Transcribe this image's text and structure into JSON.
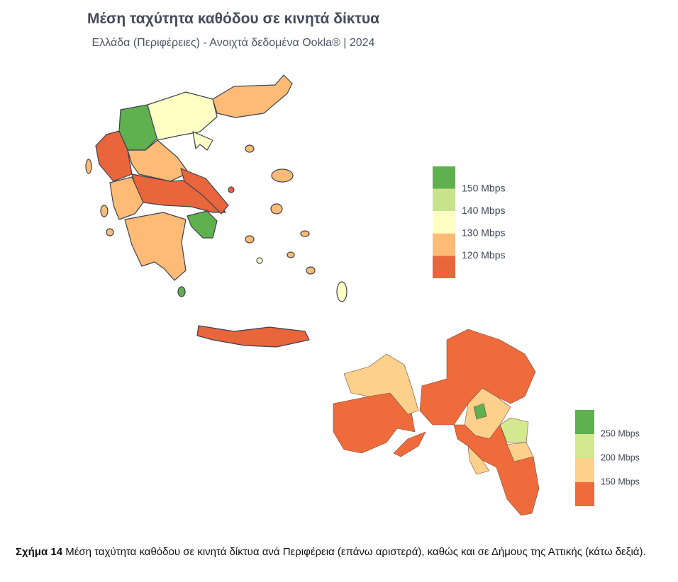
{
  "header": {
    "title": "Μέση ταχύτητα καθόδου σε κινητά δίκτυα",
    "subtitle": "Ελλάδα (Περιφέρειες) - Ανοιχτά δεδομένα Ookla® | 2024"
  },
  "legend_regions": {
    "colors": [
      "#5fb04f",
      "#c9e38a",
      "#ffffc4",
      "#fdbb75",
      "#e9653b"
    ],
    "labels": [
      "150 Mbps",
      "140 Mbps",
      "130 Mbps",
      "120 Mbps"
    ]
  },
  "legend_municipalities": {
    "colors": [
      "#5fb04f",
      "#d4e88f",
      "#fdd08c",
      "#ef6b3c"
    ],
    "labels": [
      "250 Mbps",
      "200 Mbps",
      "150 Mbps"
    ]
  },
  "caption": {
    "label": "Σχήμα 14",
    "text": "Μέση ταχύτητα καθόδου σε κινητά δίκτυα ανά Περιφέρεια (επάνω αριστερά), καθώς και σε Δήμους της Αττικής (κάτω δεξιά)."
  }
}
